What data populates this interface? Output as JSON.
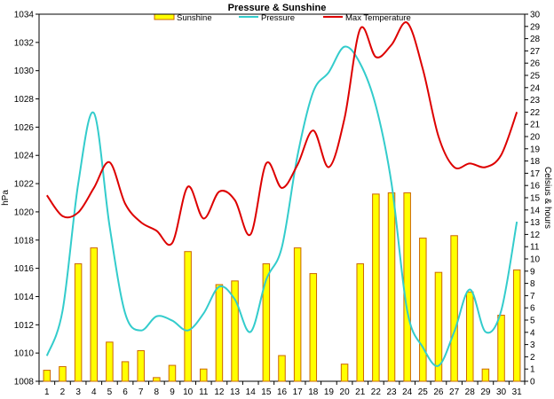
{
  "chart_data": {
    "type": "bar+line",
    "title": "Pressure & Sunshine",
    "left_axis_label": "hPa",
    "right_axis_label": "Celsius & hours",
    "left_ylim": [
      1008,
      1034
    ],
    "left_ticks": [
      1008,
      1010,
      1012,
      1014,
      1016,
      1018,
      1020,
      1022,
      1024,
      1026,
      1028,
      1030,
      1032,
      1034
    ],
    "right_ylim": [
      0,
      30
    ],
    "right_ticks": [
      0,
      1,
      2,
      3,
      4,
      5,
      6,
      7,
      8,
      9,
      10,
      11,
      12,
      13,
      14,
      15,
      16,
      17,
      18,
      19,
      20,
      21,
      22,
      23,
      24,
      25,
      26,
      27,
      28,
      29,
      30
    ],
    "categories": [
      "1",
      "2",
      "3",
      "4",
      "5",
      "6",
      "7",
      "8",
      "9",
      "10",
      "11",
      "12",
      "13",
      "14",
      "15",
      "16",
      "17",
      "18",
      "19",
      "20",
      "21",
      "22",
      "23",
      "24",
      "25",
      "26",
      "27",
      "28",
      "29",
      "30",
      "31"
    ],
    "legend_position": "top",
    "series": [
      {
        "name": "Sunshine",
        "kind": "bar",
        "axis": "right",
        "color": "#ffff00",
        "edge_color": "#cc6600",
        "values": [
          0.9,
          1.2,
          9.6,
          10.9,
          3.2,
          1.6,
          2.5,
          0.3,
          1.3,
          10.6,
          1.0,
          7.9,
          8.2,
          0,
          9.6,
          2.1,
          10.9,
          8.8,
          0,
          1.4,
          9.6,
          15.3,
          15.4,
          15.4,
          11.7,
          8.9,
          11.9,
          7.3,
          1.0,
          5.4,
          9.1
        ]
      },
      {
        "name": "Pressure",
        "kind": "line",
        "axis": "left",
        "color": "#33cccc",
        "values": [
          1009.8,
          1013.0,
          1022.0,
          1027.0,
          1019.0,
          1012.8,
          1011.6,
          1012.6,
          1012.3,
          1011.6,
          1012.8,
          1014.7,
          1013.8,
          1011.5,
          1015.2,
          1017.5,
          1024.0,
          1028.5,
          1029.9,
          1031.7,
          1030.5,
          1027.5,
          1022.0,
          1013.0,
          1010.4,
          1009.1,
          1011.5,
          1014.5,
          1011.5,
          1013.0,
          1019.3
        ]
      },
      {
        "name": "Max Temperature",
        "kind": "line",
        "axis": "right",
        "color": "#dd0000",
        "values": [
          15.2,
          13.5,
          13.8,
          15.8,
          17.9,
          14.5,
          13.0,
          12.3,
          11.3,
          15.9,
          13.3,
          15.5,
          14.8,
          12.0,
          17.8,
          15.8,
          17.7,
          20.5,
          17.5,
          21.5,
          28.8,
          26.5,
          27.5,
          29.3,
          25.5,
          20.0,
          17.5,
          17.8,
          17.5,
          18.5,
          22.0
        ]
      }
    ]
  }
}
